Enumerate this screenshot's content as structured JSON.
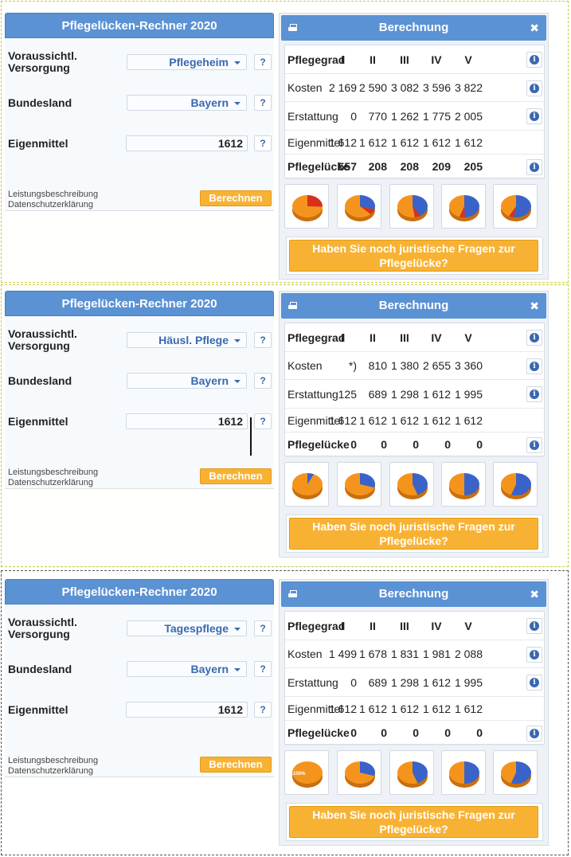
{
  "title": "Pflegelücken-Rechner 2020",
  "calc_title": "Berechnung",
  "labels": {
    "versorgung": "Voraussichtl. Versorgung",
    "bundesland": "Bundesland",
    "eigenmittel": "Eigenmittel",
    "help": "?",
    "leistung": "Leistungsbeschreibung",
    "datenschutz": "Datenschutzerklärung",
    "berechnen": "Berechnen",
    "close": "✖",
    "info": "i",
    "ask": "Haben Sie noch juristische Fragen zur Pflegelücke?"
  },
  "table_header": {
    "label": "Pflegegrad",
    "grades": [
      "I",
      "II",
      "III",
      "IV",
      "V"
    ]
  },
  "row_labels": [
    "Kosten",
    "Erstattung",
    "Eigenmittel",
    "Pflegelücke"
  ],
  "colors": {
    "accent": "#5b92d4",
    "button": "#f8b233",
    "pie_orange": "#f5941d",
    "pie_blue": "#3a63c9",
    "pie_red": "#d8301f"
  },
  "scenarios": [
    {
      "versorgung": "Pflegeheim",
      "bundesland": "Bayern",
      "eigenmittel": "1612",
      "kosten": [
        "2 169",
        "2 590",
        "3 082",
        "3 596",
        "3 822"
      ],
      "erstattung": [
        "0",
        "770",
        "1 262",
        "1 775",
        "2 005"
      ],
      "eigen": [
        "1 612",
        "1 612",
        "1 612",
        "1 612",
        "1 612"
      ],
      "luecke": [
        "557",
        "208",
        "208",
        "209",
        "205"
      ],
      "pies": [
        {
          "erstattung": 0.0,
          "eigenmittel": 0.743,
          "luecke": 0.257
        },
        {
          "erstattung": 0.297,
          "eigenmittel": 0.623,
          "luecke": 0.08
        },
        {
          "erstattung": 0.41,
          "eigenmittel": 0.523,
          "luecke": 0.067
        },
        {
          "erstattung": 0.494,
          "eigenmittel": 0.448,
          "luecke": 0.058
        },
        {
          "erstattung": 0.525,
          "eigenmittel": 0.422,
          "luecke": 0.053
        }
      ],
      "pie_center_label": ""
    },
    {
      "versorgung": "Häusl. Pflege",
      "bundesland": "Bayern",
      "eigenmittel": "1612",
      "kosten": [
        "*)",
        "810",
        "1 380",
        "2 655",
        "3 360"
      ],
      "erstattung": [
        "125",
        "689",
        "1 298",
        "1 612",
        "1 995"
      ],
      "eigen": [
        "1 612",
        "1 612",
        "1 612",
        "1 612",
        "1 612"
      ],
      "luecke": [
        "0",
        "0",
        "0",
        "0",
        "0"
      ],
      "pies": [
        {
          "erstattung": 0.072,
          "eigenmittel": 0.928,
          "luecke": 0
        },
        {
          "erstattung": 0.299,
          "eigenmittel": 0.701,
          "luecke": 0
        },
        {
          "erstattung": 0.446,
          "eigenmittel": 0.554,
          "luecke": 0
        },
        {
          "erstattung": 0.5,
          "eigenmittel": 0.5,
          "luecke": 0
        },
        {
          "erstattung": 0.553,
          "eigenmittel": 0.447,
          "luecke": 0
        }
      ],
      "pie_center_label": ""
    },
    {
      "versorgung": "Tagespflege",
      "bundesland": "Bayern",
      "eigenmittel": "1612",
      "kosten": [
        "1 499",
        "1 678",
        "1 831",
        "1 981",
        "2 088"
      ],
      "erstattung": [
        "0",
        "689",
        "1 298",
        "1 612",
        "1 995"
      ],
      "eigen": [
        "1 612",
        "1 612",
        "1 612",
        "1 612",
        "1 612"
      ],
      "luecke": [
        "0",
        "0",
        "0",
        "0",
        "0"
      ],
      "pies": [
        {
          "erstattung": 0.0,
          "eigenmittel": 1.0,
          "luecke": 0
        },
        {
          "erstattung": 0.299,
          "eigenmittel": 0.701,
          "luecke": 0
        },
        {
          "erstattung": 0.446,
          "eigenmittel": 0.554,
          "luecke": 0
        },
        {
          "erstattung": 0.5,
          "eigenmittel": 0.5,
          "luecke": 0
        },
        {
          "erstattung": 0.553,
          "eigenmittel": 0.447,
          "luecke": 0
        }
      ],
      "pie_center_label": "100%"
    }
  ]
}
